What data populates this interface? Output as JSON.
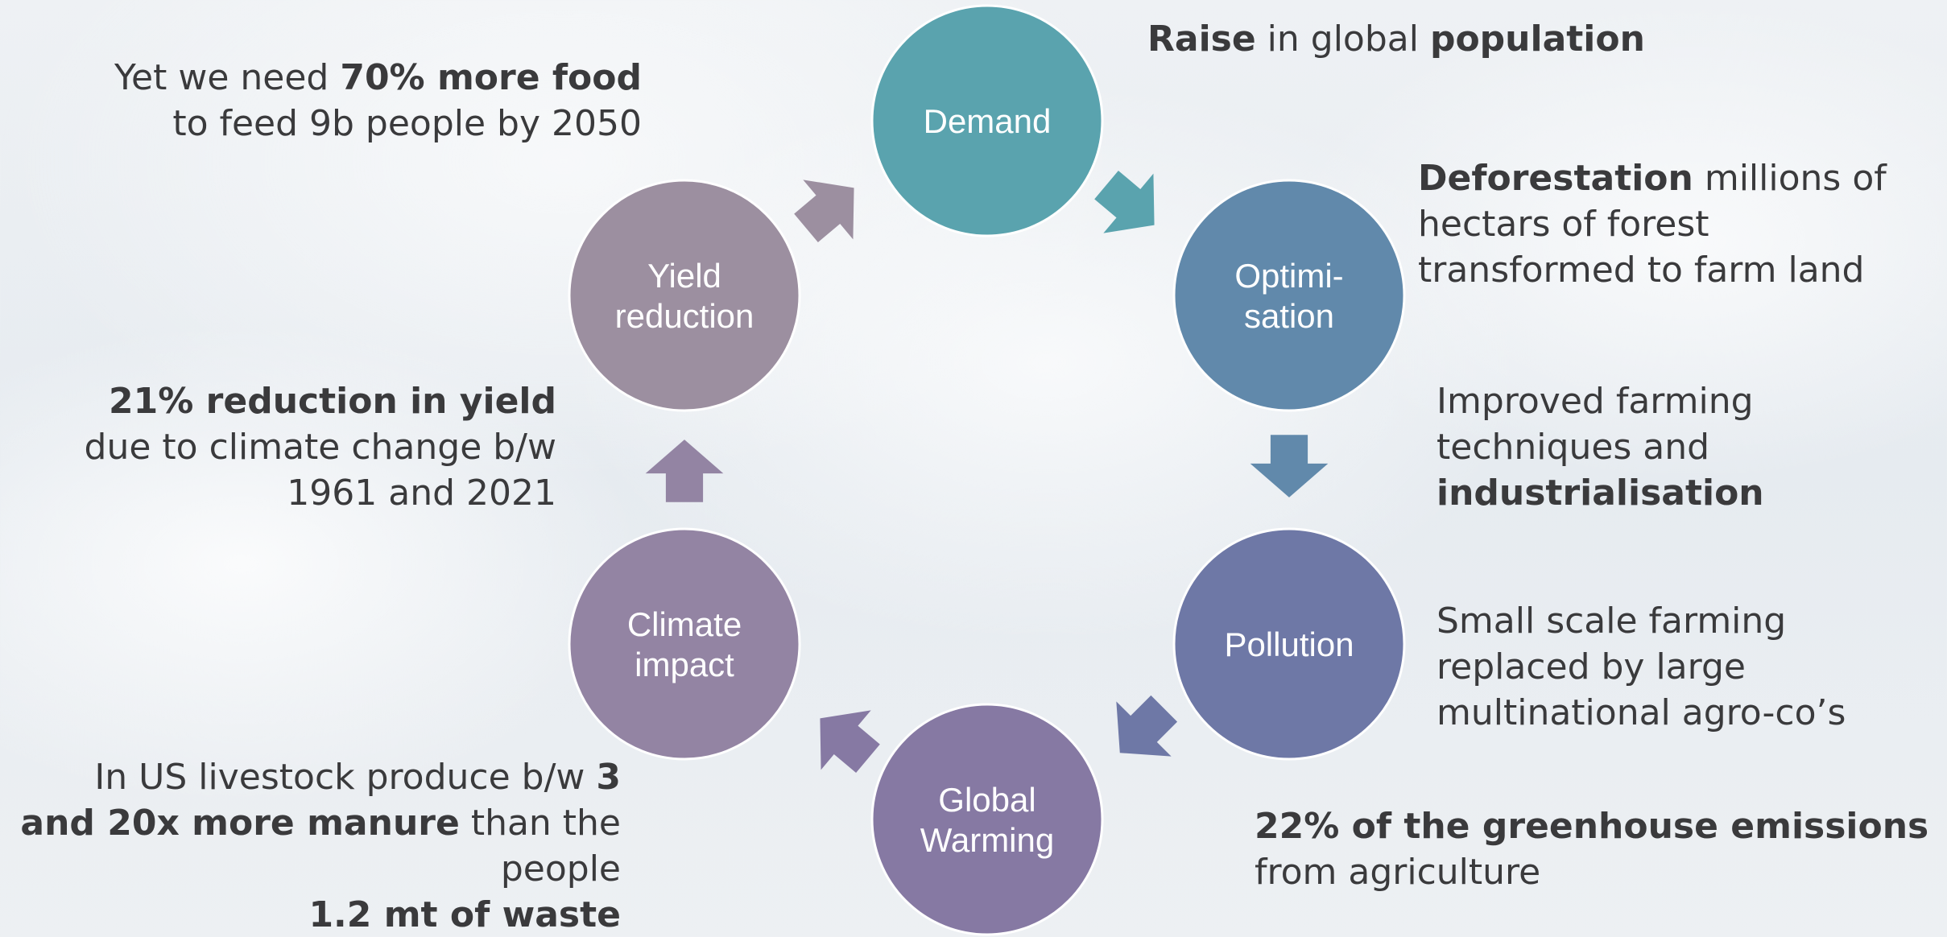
{
  "diagram": {
    "nodes": [
      {
        "lines": [
          "Demand"
        ],
        "color": "#5aa3ae"
      },
      {
        "lines": [
          "Optimi-",
          "sation"
        ],
        "color": "#6189ab"
      },
      {
        "lines": [
          "Pollution"
        ],
        "color": "#6e78a6"
      },
      {
        "lines": [
          "Global",
          "Warming"
        ],
        "color": "#8679a3"
      },
      {
        "lines": [
          "Climate",
          "impact"
        ],
        "color": "#9384a3"
      },
      {
        "lines": [
          "Yield",
          "reduction"
        ],
        "color": "#9c8fa0"
      }
    ],
    "annotations": [
      {
        "align": "right",
        "lines": [
          [
            {
              "text": "Yet we need ",
              "bold": false
            },
            {
              "text": "70% more food",
              "bold": true
            }
          ],
          [
            {
              "text": "to feed 9b people by 2050",
              "bold": false
            }
          ]
        ]
      },
      {
        "align": "left",
        "lines": [
          [
            {
              "text": "Raise",
              "bold": true
            },
            {
              "text": " in global ",
              "bold": false
            },
            {
              "text": "population",
              "bold": true
            }
          ]
        ]
      },
      {
        "align": "left",
        "lines": [
          [
            {
              "text": "Deforestation",
              "bold": true
            },
            {
              "text": " millions of",
              "bold": false
            }
          ],
          [
            {
              "text": "hectars of forest",
              "bold": false
            }
          ],
          [
            {
              "text": "transformed to farm land",
              "bold": false
            }
          ]
        ]
      },
      {
        "align": "left",
        "lines": [
          [
            {
              "text": "Improved farming",
              "bold": false
            }
          ],
          [
            {
              "text": "techniques and",
              "bold": false
            }
          ],
          [
            {
              "text": "industrialisation",
              "bold": true
            }
          ]
        ]
      },
      {
        "align": "left",
        "lines": [
          [
            {
              "text": "Small scale farming",
              "bold": false
            }
          ],
          [
            {
              "text": "replaced by large",
              "bold": false
            }
          ],
          [
            {
              "text": "multinational agro-co’s",
              "bold": false
            }
          ]
        ]
      },
      {
        "align": "left",
        "lines": [
          [
            {
              "text": "22% of the greenhouse emissions",
              "bold": true
            }
          ],
          [
            {
              "text": "from agriculture",
              "bold": false
            }
          ]
        ]
      },
      {
        "align": "right",
        "lines": [
          [
            {
              "text": "21% reduction in yield",
              "bold": true
            }
          ],
          [
            {
              "text": "due to climate change b/w",
              "bold": false
            }
          ],
          [
            {
              "text": "1961 and 2021",
              "bold": false
            }
          ]
        ]
      },
      {
        "align": "right",
        "lines": [
          [
            {
              "text": "In US livestock produce b/w ",
              "bold": false
            },
            {
              "text": "3",
              "bold": true
            }
          ],
          [
            {
              "text": "and 20x more manure",
              "bold": true
            },
            {
              "text": " than the",
              "bold": false
            }
          ],
          [
            {
              "text": "people",
              "bold": false
            }
          ],
          [
            {
              "text": "1.2 mt of waste",
              "bold": true
            }
          ]
        ]
      }
    ]
  }
}
